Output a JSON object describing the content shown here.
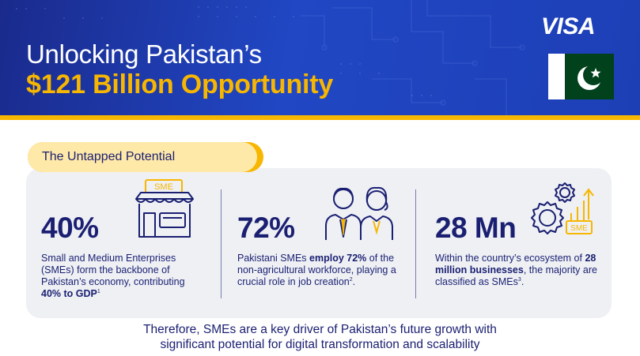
{
  "header": {
    "title_line1": "Unlocking Pakistan’s",
    "title_line2": "$121 Billion Opportunity",
    "brand": "VISA"
  },
  "section": {
    "label": "The Untapped Potential"
  },
  "stats": [
    {
      "value": "40%",
      "desc_pre": "Small and Medium Enterprises (SMEs) form the backbone of Pakistan’s economy, contributing ",
      "desc_bold": "40% to GDP",
      "desc_post": "",
      "footnote": "1",
      "icon": "sme-storefront-icon",
      "icon_text": "SME"
    },
    {
      "value": "72%",
      "desc_pre": "Pakistani SMEs ",
      "desc_bold": "employ 72%",
      "desc_post": " of the non-agricultural workforce, playing a crucial role in job creation",
      "footnote": "2",
      "desc_end": ".",
      "icon": "workers-icon"
    },
    {
      "value": "28 Mn",
      "desc_pre": "Within the country’s ecosystem of ",
      "desc_bold": "28 million businesses",
      "desc_post": ", the majority are classified as SMEs",
      "footnote": "3",
      "desc_end": ".",
      "icon": "gears-growth-icon",
      "icon_text": "SME"
    }
  ],
  "footer": {
    "line1": "Therefore, SMEs are a key driver of Pakistan’s future growth with",
    "line2": "significant potential for digital transformation and scalability"
  },
  "colors": {
    "navy": "#1a1f71",
    "header_blue": "#2147c4",
    "gold": "#f7b600",
    "panel": "#eef0f4",
    "flag_green": "#01411c"
  }
}
